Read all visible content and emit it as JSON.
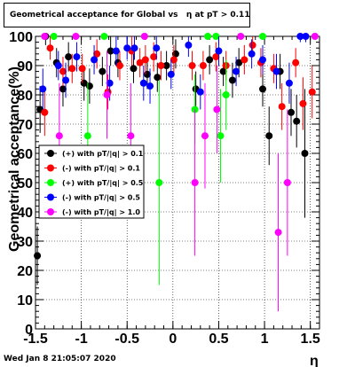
{
  "chart_data": {
    "type": "scatter",
    "title": "Geometrical acceptance for Global vs   η at pT > 0.11",
    "xlabel": "η",
    "ylabel": "Geometrical acceptance(%)",
    "xlim": [
      -1.5,
      1.6
    ],
    "ylim": [
      0,
      100
    ],
    "x_ticks": [
      "-1.5",
      "-1",
      "-0.5",
      "0",
      "0.5",
      "1",
      "1.5"
    ],
    "y_ticks": [
      "0",
      "10",
      "20",
      "30",
      "40",
      "50",
      "60",
      "70",
      "80",
      "90",
      "100"
    ],
    "grid": true,
    "legend_position": "middle-left",
    "series": [
      {
        "name": "(+) with pT/|q| > 0.1",
        "color": "#000000",
        "points": [
          {
            "x": -1.48,
            "y": 25,
            "err": 10
          },
          {
            "x": -1.45,
            "y": 75,
            "err": 8
          },
          {
            "x": -1.39,
            "y": 100,
            "err": 3
          },
          {
            "x": -1.27,
            "y": 91,
            "err": 5
          },
          {
            "x": -1.2,
            "y": 82,
            "err": 6
          },
          {
            "x": -1.14,
            "y": 93,
            "err": 5
          },
          {
            "x": -0.97,
            "y": 84,
            "err": 6
          },
          {
            "x": -0.91,
            "y": 83,
            "err": 6
          },
          {
            "x": -0.77,
            "y": 88,
            "err": 5
          },
          {
            "x": -0.68,
            "y": 95,
            "err": 5
          },
          {
            "x": -0.6,
            "y": 91,
            "err": 5
          },
          {
            "x": -0.43,
            "y": 89,
            "err": 5
          },
          {
            "x": -0.28,
            "y": 87,
            "err": 5
          },
          {
            "x": -0.17,
            "y": 86,
            "err": 5
          },
          {
            "x": -0.07,
            "y": 90,
            "err": 5
          },
          {
            "x": 0.03,
            "y": 94,
            "err": 5
          },
          {
            "x": 0.25,
            "y": 82,
            "err": 6
          },
          {
            "x": 0.4,
            "y": 92,
            "err": 5
          },
          {
            "x": 0.55,
            "y": 88,
            "err": 5
          },
          {
            "x": 0.65,
            "y": 85,
            "err": 6
          },
          {
            "x": 0.72,
            "y": 91,
            "err": 5
          },
          {
            "x": 0.98,
            "y": 82,
            "err": 6
          },
          {
            "x": 1.05,
            "y": 66,
            "err": 10
          },
          {
            "x": 1.17,
            "y": 88,
            "err": 6
          },
          {
            "x": 1.29,
            "y": 74,
            "err": 8
          },
          {
            "x": 1.35,
            "y": 71,
            "err": 9
          },
          {
            "x": 1.44,
            "y": 60,
            "err": 22
          }
        ]
      },
      {
        "name": "(-) with pT/|q| > 0.1",
        "color": "#ff0000",
        "points": [
          {
            "x": -1.4,
            "y": 74,
            "err": 8
          },
          {
            "x": -1.34,
            "y": 96,
            "err": 4
          },
          {
            "x": -1.2,
            "y": 88,
            "err": 5
          },
          {
            "x": -1.1,
            "y": 89,
            "err": 5
          },
          {
            "x": -0.99,
            "y": 89,
            "err": 5
          },
          {
            "x": -0.83,
            "y": 94,
            "err": 5
          },
          {
            "x": -0.71,
            "y": 81,
            "err": 6
          },
          {
            "x": -0.58,
            "y": 90,
            "err": 5
          },
          {
            "x": -0.45,
            "y": 95,
            "err": 5
          },
          {
            "x": -0.36,
            "y": 91,
            "err": 5
          },
          {
            "x": -0.3,
            "y": 92,
            "err": 5
          },
          {
            "x": -0.21,
            "y": 93,
            "err": 5
          },
          {
            "x": -0.13,
            "y": 90,
            "err": 5
          },
          {
            "x": 0.01,
            "y": 92,
            "err": 5
          },
          {
            "x": 0.21,
            "y": 90,
            "err": 5
          },
          {
            "x": 0.33,
            "y": 90,
            "err": 5
          },
          {
            "x": 0.47,
            "y": 93,
            "err": 5
          },
          {
            "x": 0.58,
            "y": 90,
            "err": 5
          },
          {
            "x": 0.78,
            "y": 92,
            "err": 5
          },
          {
            "x": 0.87,
            "y": 97,
            "err": 4
          },
          {
            "x": 0.96,
            "y": 91,
            "err": 5
          },
          {
            "x": 1.1,
            "y": 89,
            "err": 5
          },
          {
            "x": 1.19,
            "y": 76,
            "err": 8
          },
          {
            "x": 1.34,
            "y": 91,
            "err": 5
          },
          {
            "x": 1.42,
            "y": 77,
            "err": 9
          },
          {
            "x": 1.52,
            "y": 81,
            "err": 9
          }
        ]
      },
      {
        "name": "(+) with pT/|q| > 0.5",
        "color": "#00ff00",
        "points": [
          {
            "x": -1.3,
            "y": 100,
            "err": 1
          },
          {
            "x": -0.93,
            "y": 66,
            "err": 18
          },
          {
            "x": -0.75,
            "y": 100,
            "err": 1
          },
          {
            "x": -0.15,
            "y": 50,
            "err": 35
          },
          {
            "x": 0.24,
            "y": 75,
            "err": 12
          },
          {
            "x": 0.38,
            "y": 100,
            "err": 1
          },
          {
            "x": 0.47,
            "y": 100,
            "err": 1
          },
          {
            "x": 0.52,
            "y": 66,
            "err": 16
          },
          {
            "x": 0.58,
            "y": 80,
            "err": 12
          },
          {
            "x": 0.98,
            "y": 100,
            "err": 1
          }
        ]
      },
      {
        "name": "(-) with pT/|q| > 0.5",
        "color": "#0000ff",
        "points": [
          {
            "x": -1.42,
            "y": 82,
            "err": 7
          },
          {
            "x": -1.25,
            "y": 90,
            "err": 5
          },
          {
            "x": -1.17,
            "y": 85,
            "err": 6
          },
          {
            "x": -1.05,
            "y": 93,
            "err": 5
          },
          {
            "x": -0.86,
            "y": 92,
            "err": 5
          },
          {
            "x": -0.69,
            "y": 84,
            "err": 6
          },
          {
            "x": -0.62,
            "y": 95,
            "err": 5
          },
          {
            "x": -0.5,
            "y": 96,
            "err": 4
          },
          {
            "x": -0.42,
            "y": 96,
            "err": 4
          },
          {
            "x": -0.32,
            "y": 84,
            "err": 6
          },
          {
            "x": -0.25,
            "y": 83,
            "err": 6
          },
          {
            "x": -0.18,
            "y": 96,
            "err": 4
          },
          {
            "x": -0.02,
            "y": 87,
            "err": 5
          },
          {
            "x": 0.17,
            "y": 97,
            "err": 4
          },
          {
            "x": 0.3,
            "y": 81,
            "err": 6
          },
          {
            "x": 0.5,
            "y": 95,
            "err": 5
          },
          {
            "x": 0.69,
            "y": 88,
            "err": 5
          },
          {
            "x": 0.86,
            "y": 94,
            "err": 5
          },
          {
            "x": 0.98,
            "y": 92,
            "err": 5
          },
          {
            "x": 1.13,
            "y": 88,
            "err": 6
          },
          {
            "x": 1.27,
            "y": 84,
            "err": 7
          },
          {
            "x": 1.39,
            "y": 100,
            "err": 2
          },
          {
            "x": 1.45,
            "y": 100,
            "err": 2
          }
        ]
      },
      {
        "name": "(-) with pT/|q| > 1.0",
        "color": "#ff00ff",
        "points": [
          {
            "x": -1.4,
            "y": 100,
            "err": 1
          },
          {
            "x": -1.24,
            "y": 66,
            "err": 18
          },
          {
            "x": -1.06,
            "y": 100,
            "err": 1
          },
          {
            "x": -0.72,
            "y": 80,
            "err": 15
          },
          {
            "x": -0.46,
            "y": 66,
            "err": 18
          },
          {
            "x": -0.31,
            "y": 100,
            "err": 1
          },
          {
            "x": 0.24,
            "y": 50,
            "err": 25
          },
          {
            "x": 0.35,
            "y": 66,
            "err": 18
          },
          {
            "x": 0.48,
            "y": 75,
            "err": 15
          },
          {
            "x": 0.74,
            "y": 100,
            "err": 1
          },
          {
            "x": 1.15,
            "y": 33,
            "err": 27
          },
          {
            "x": 1.25,
            "y": 50,
            "err": 25
          },
          {
            "x": 1.55,
            "y": 100,
            "err": 1
          }
        ]
      }
    ]
  },
  "footer": {
    "timestamp": "Wed Jan  8 21:05:07 2020"
  }
}
